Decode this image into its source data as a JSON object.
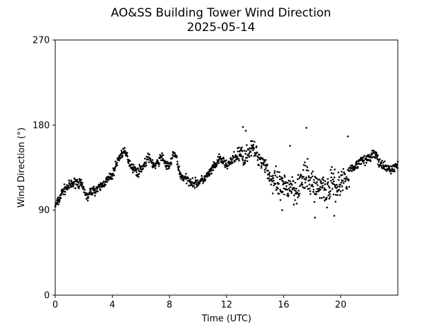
{
  "chart_data": {
    "type": "scatter",
    "title": "AO&SS Building Tower Wind Direction",
    "subtitle": "2025-05-14",
    "xlabel": "Time (UTC)",
    "ylabel": "Wind Direction (°)",
    "xlim": [
      0,
      24
    ],
    "ylim": [
      0,
      270
    ],
    "xticks": [
      0,
      4,
      8,
      12,
      16,
      20
    ],
    "xtick_labels": [
      "0",
      "4",
      "8",
      "12",
      "16",
      "20"
    ],
    "yticks": [
      0,
      90,
      180,
      270
    ],
    "ytick_labels": [
      "0",
      "90",
      "180",
      "270"
    ],
    "grid": false,
    "marker_color": "#000000",
    "series": [
      {
        "x": [
          0.0,
          0.25,
          0.5,
          0.75,
          1.0,
          1.25,
          1.5,
          1.75,
          2.0,
          2.25,
          2.5,
          2.75,
          3.0,
          3.25,
          3.5,
          3.75,
          4.0,
          4.25,
          4.5,
          4.75,
          5.0,
          5.25,
          5.5,
          5.75,
          6.0,
          6.25,
          6.5,
          6.75,
          7.0,
          7.25,
          7.5,
          7.75,
          8.0,
          8.25,
          8.5,
          8.75,
          9.0,
          9.25,
          9.5,
          9.75,
          10.0,
          10.25,
          10.5,
          10.75,
          11.0,
          11.25,
          11.5,
          11.75,
          12.0,
          12.25,
          12.5,
          12.75,
          13.0,
          13.25,
          13.5,
          13.75,
          14.0,
          14.25,
          14.5,
          14.75,
          15.0,
          15.25,
          15.5,
          15.75,
          16.0,
          16.25,
          16.5,
          16.75,
          17.0,
          17.25,
          17.5,
          17.75,
          18.0,
          18.25,
          18.5,
          18.75,
          19.0,
          19.25,
          19.5,
          19.75,
          20.0,
          20.25,
          20.5,
          20.75,
          21.0,
          21.25,
          21.5,
          21.75,
          22.0,
          22.25,
          22.5,
          22.75,
          23.0,
          23.25,
          23.5,
          23.75,
          24.0
        ],
        "y": [
          95,
          100,
          110,
          113,
          116,
          118,
          120,
          118,
          112,
          103,
          110,
          111,
          112,
          116,
          120,
          123,
          127,
          138,
          146,
          152,
          148,
          139,
          134,
          130,
          134,
          138,
          146,
          141,
          136,
          142,
          147,
          138,
          135,
          150,
          145,
          127,
          124,
          122,
          121,
          118,
          119,
          121,
          124,
          128,
          133,
          138,
          144,
          142,
          138,
          140,
          144,
          148,
          150,
          145,
          151,
          156,
          152,
          146,
          142,
          138,
          126,
          120,
          116,
          113,
          112,
          114,
          118,
          112,
          115,
          120,
          125,
          122,
          118,
          116,
          112,
          120,
          106,
          116,
          122,
          113,
          118,
          125,
          128,
          134,
          136,
          140,
          146,
          142,
          145,
          150,
          148,
          138,
          136,
          134,
          133,
          135,
          138
        ]
      }
    ]
  }
}
